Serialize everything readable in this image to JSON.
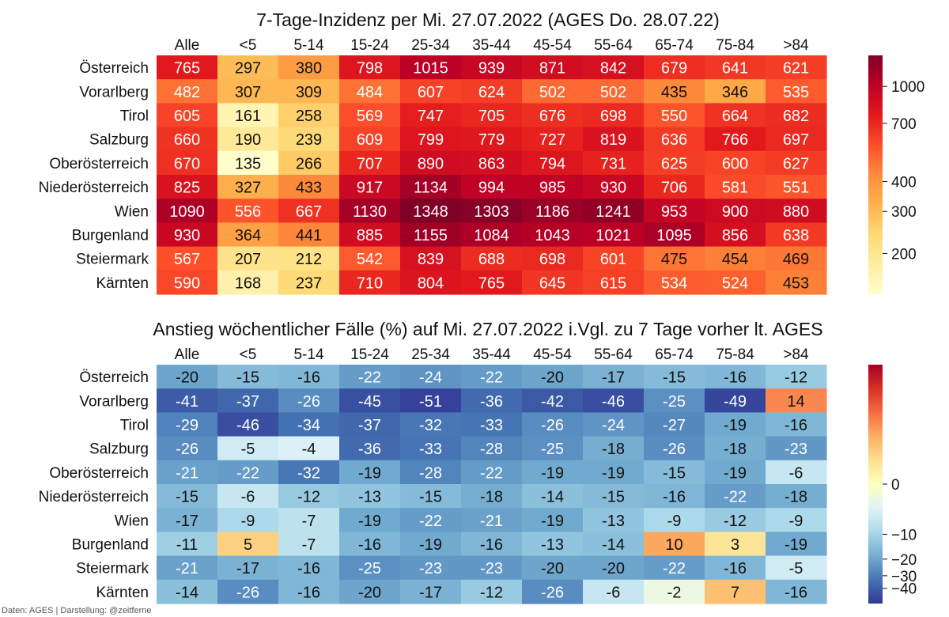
{
  "footer": "Daten: AGES | Darstellung: @zeitferne",
  "chart_data": [
    {
      "type": "heatmap",
      "title": "7-Tage-Inzidenz per Mi. 27.07.2022  (AGES Do. 28.07.22)",
      "columns": [
        "Alle",
        "<5",
        "5-14",
        "15-24",
        "25-34",
        "35-44",
        "45-54",
        "55-64",
        "65-74",
        "75-84",
        ">84"
      ],
      "rows": [
        "Österreich",
        "Vorarlberg",
        "Tirol",
        "Salzburg",
        "Oberösterreich",
        "Niederösterreich",
        "Wien",
        "Burgenland",
        "Steiermark",
        "Kärnten"
      ],
      "values": [
        [
          765,
          297,
          380,
          798,
          1015,
          939,
          871,
          842,
          679,
          641,
          621
        ],
        [
          482,
          307,
          309,
          484,
          607,
          624,
          502,
          502,
          435,
          346,
          535
        ],
        [
          605,
          161,
          258,
          569,
          747,
          705,
          676,
          698,
          550,
          664,
          682
        ],
        [
          660,
          190,
          239,
          609,
          799,
          779,
          727,
          819,
          636,
          766,
          697
        ],
        [
          670,
          135,
          266,
          707,
          890,
          863,
          794,
          731,
          625,
          600,
          627
        ],
        [
          825,
          327,
          433,
          917,
          1134,
          994,
          985,
          930,
          706,
          581,
          551
        ],
        [
          1090,
          556,
          667,
          1130,
          1348,
          1303,
          1186,
          1241,
          953,
          900,
          880
        ],
        [
          930,
          364,
          441,
          885,
          1155,
          1084,
          1043,
          1021,
          1095,
          856,
          638
        ],
        [
          567,
          207,
          212,
          542,
          839,
          688,
          698,
          601,
          475,
          454,
          469
        ],
        [
          590,
          168,
          237,
          710,
          804,
          765,
          645,
          615,
          534,
          524,
          453
        ]
      ],
      "colorscale": "YlOrRd",
      "scale": "log",
      "vmin": 135,
      "vmax": 1348,
      "colorbar_ticks": [
        200,
        300,
        400,
        700,
        1000
      ]
    },
    {
      "type": "heatmap",
      "title": "Anstieg wöchentlicher Fälle (%) auf Mi. 27.07.2022 i.Vgl. zu 7 Tage vorher lt. AGES",
      "columns": [
        "Alle",
        "<5",
        "5-14",
        "15-24",
        "25-34",
        "35-44",
        "45-54",
        "55-64",
        "65-74",
        "75-84",
        ">84"
      ],
      "rows": [
        "Österreich",
        "Vorarlberg",
        "Tirol",
        "Salzburg",
        "Oberösterreich",
        "Niederösterreich",
        "Wien",
        "Burgenland",
        "Steiermark",
        "Kärnten"
      ],
      "values": [
        [
          -20,
          -15,
          -16,
          -22,
          -24,
          -22,
          -20,
          -17,
          -15,
          -16,
          -12
        ],
        [
          -41,
          -37,
          -26,
          -45,
          -51,
          -36,
          -42,
          -46,
          -25,
          -49,
          14
        ],
        [
          -29,
          -46,
          -34,
          -37,
          -32,
          -33,
          -26,
          -24,
          -27,
          -19,
          -16
        ],
        [
          -26,
          -5,
          -4,
          -36,
          -33,
          -28,
          -25,
          -18,
          -26,
          -18,
          -23
        ],
        [
          -21,
          -22,
          -32,
          -19,
          -28,
          -22,
          -19,
          -19,
          -15,
          -19,
          -6
        ],
        [
          -15,
          -6,
          -12,
          -13,
          -15,
          -18,
          -14,
          -15,
          -16,
          -22,
          -18
        ],
        [
          -17,
          -9,
          -7,
          -19,
          -22,
          -21,
          -19,
          -13,
          -9,
          -12,
          -9
        ],
        [
          -11,
          5,
          -7,
          -16,
          -19,
          -16,
          -13,
          -14,
          10,
          3,
          -19
        ],
        [
          -21,
          -17,
          -16,
          -25,
          -23,
          -23,
          -20,
          -20,
          -22,
          -16,
          -5
        ],
        [
          -14,
          -26,
          -16,
          -20,
          -17,
          -12,
          -26,
          -6,
          -2,
          7,
          -16
        ]
      ],
      "colorscale": "RdYlBu_r",
      "scale": "symmetric-log",
      "center": 0,
      "colorbar_ticks": [
        0,
        -10,
        -20,
        -30,
        -40
      ],
      "colorbar_tick_labels": [
        "0",
        "−10",
        "−20",
        "−30",
        "−40"
      ]
    }
  ]
}
